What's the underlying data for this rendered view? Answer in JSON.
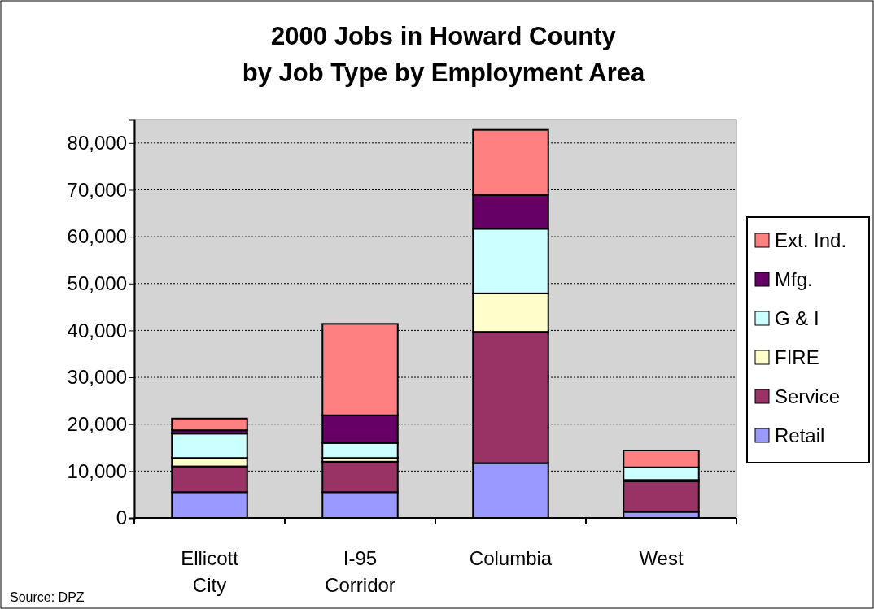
{
  "chart_data": {
    "type": "bar",
    "stacked": true,
    "title": "2000 Jobs in Howard County\nby Job Type by Employment Area",
    "categories": [
      "Ellicott City",
      "I-95 Corridor",
      "Columbia",
      "West"
    ],
    "series": [
      {
        "name": "Retail",
        "color": "#9999ff",
        "values": [
          5500,
          5500,
          11700,
          1300
        ]
      },
      {
        "name": "Service",
        "color": "#993366",
        "values": [
          5500,
          6500,
          28000,
          6500
        ]
      },
      {
        "name": "FIRE",
        "color": "#ffffcc",
        "values": [
          1800,
          800,
          8200,
          300
        ]
      },
      {
        "name": "G & I",
        "color": "#ccffff",
        "values": [
          5200,
          3200,
          13800,
          2700
        ]
      },
      {
        "name": "Mfg.",
        "color": "#660066",
        "values": [
          700,
          5900,
          7200,
          null
        ]
      },
      {
        "name": "Ext. Ind.",
        "color": "#ff8080",
        "values": [
          2500,
          19500,
          13900,
          3600
        ]
      }
    ],
    "ylim": [
      0,
      85000
    ],
    "yticks": [
      {
        "value": 0,
        "label": "0"
      },
      {
        "value": 10000,
        "label": "10,000"
      },
      {
        "value": 20000,
        "label": "20,000"
      },
      {
        "value": 30000,
        "label": "30,000"
      },
      {
        "value": 40000,
        "label": "40,000"
      },
      {
        "value": 50000,
        "label": "50,000"
      },
      {
        "value": 60000,
        "label": "60,000"
      },
      {
        "value": 70000,
        "label": "70,000"
      },
      {
        "value": 80000,
        "label": "80,000"
      }
    ],
    "grid": "y",
    "legend": "right",
    "annotations": [
      "Source: DPZ"
    ]
  }
}
